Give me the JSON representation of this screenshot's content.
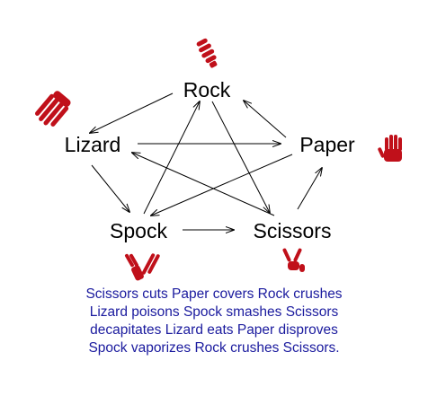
{
  "colors": {
    "caption": "#1a1a9e",
    "hand": "#c0101a",
    "arrow": "#000000",
    "label": "#000000"
  },
  "nodes": {
    "rock": {
      "label": "Rock",
      "icon": "fist-hand-icon"
    },
    "paper": {
      "label": "Paper",
      "icon": "open-hand-icon"
    },
    "scissors": {
      "label": "Scissors",
      "icon": "v-sign-hand-icon"
    },
    "lizard": {
      "label": "Lizard",
      "icon": "lizard-hand-icon"
    },
    "spock": {
      "label": "Spock",
      "icon": "vulcan-salute-hand-icon"
    }
  },
  "edges": [
    {
      "from": "Scissors",
      "to": "Paper",
      "verb": "cuts"
    },
    {
      "from": "Paper",
      "to": "Rock",
      "verb": "covers"
    },
    {
      "from": "Rock",
      "to": "Lizard",
      "verb": "crushes"
    },
    {
      "from": "Lizard",
      "to": "Spock",
      "verb": "poisons"
    },
    {
      "from": "Spock",
      "to": "Scissors",
      "verb": "smashes"
    },
    {
      "from": "Scissors",
      "to": "Lizard",
      "verb": "decapitates"
    },
    {
      "from": "Lizard",
      "to": "Paper",
      "verb": "eats"
    },
    {
      "from": "Paper",
      "to": "Spock",
      "verb": "disproves"
    },
    {
      "from": "Spock",
      "to": "Rock",
      "verb": "vaporizes"
    },
    {
      "from": "Rock",
      "to": "Scissors",
      "verb": "crushes"
    }
  ],
  "caption": {
    "line1": "Scissors cuts Paper covers Rock crushes",
    "line2": "Lizard poisons Spock smashes Scissors",
    "line3": "decapitates Lizard eats Paper disproves",
    "line4": "Spock vaporizes Rock crushes Scissors."
  }
}
